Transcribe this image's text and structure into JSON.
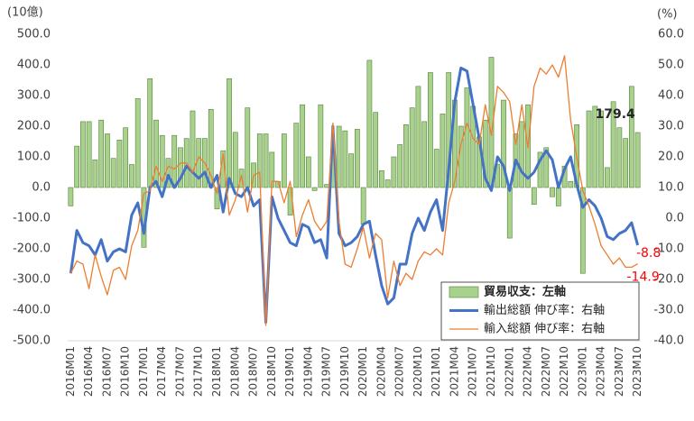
{
  "chart_data": {
    "type": "bar-line",
    "ylabel": "(10億)",
    "y2label": "(%)",
    "categories": [
      "2016M01",
      null,
      null,
      "2016M04",
      null,
      null,
      "2016M07",
      null,
      null,
      "2016M10",
      null,
      null,
      "2017M01",
      null,
      null,
      "2017M04",
      null,
      null,
      "2017M07",
      null,
      null,
      "2017M10",
      null,
      null,
      "2018M01",
      null,
      null,
      "2018M04",
      null,
      null,
      "2018M07",
      null,
      null,
      "2018M10",
      null,
      null,
      "2019M01",
      null,
      null,
      "2019M04",
      null,
      null,
      "2019M07",
      null,
      null,
      "2019M10",
      null,
      null,
      "2020M01",
      null,
      null,
      "2020M04",
      null,
      null,
      "2020M07",
      null,
      null,
      "2020M10",
      null,
      null,
      "2021M01",
      null,
      null,
      "2021M04",
      null,
      null,
      "2021M07",
      null,
      null,
      "2021M10",
      null,
      null,
      "2022M01",
      null,
      null,
      "2022M04",
      null,
      null,
      "2022M07",
      null,
      null,
      "2022M10",
      null,
      null,
      "2023M01",
      null,
      null,
      "2023M04",
      null,
      null,
      "2023M07",
      null,
      null,
      "2023M10"
    ],
    "series": [
      {
        "name": "貿易収支：左軸",
        "kind": "bar",
        "axis": "y",
        "color": "#a9d18e",
        "edge": "#548235",
        "values": [
          -60,
          135,
          215,
          215,
          90,
          220,
          175,
          95,
          155,
          195,
          75,
          290,
          -195,
          355,
          220,
          170,
          95,
          170,
          130,
          160,
          250,
          160,
          160,
          255,
          -70,
          120,
          355,
          180,
          60,
          260,
          80,
          175,
          175,
          115,
          20,
          175,
          -90,
          210,
          270,
          100,
          -10,
          270,
          10,
          120,
          200,
          185,
          110,
          190,
          -120,
          415,
          245,
          55,
          25,
          100,
          140,
          205,
          260,
          330,
          215,
          375,
          125,
          240,
          375,
          285,
          200,
          325,
          265,
          165,
          220,
          425,
          75,
          285,
          -165,
          175,
          215,
          270,
          -55,
          115,
          130,
          -30,
          -60,
          70,
          20,
          205,
          -280,
          250,
          265,
          250,
          65,
          280,
          195,
          160,
          330,
          179.4
        ],
        "value_labels": [
          null,
          null,
          null,
          null,
          null,
          null,
          null,
          null,
          null,
          null,
          null,
          null,
          null,
          null,
          null,
          null,
          null,
          null,
          null,
          null,
          null,
          null,
          null,
          null,
          null,
          null,
          null,
          null,
          null,
          null,
          null,
          null,
          null,
          null,
          null,
          null,
          null,
          null,
          null,
          null,
          null,
          null,
          null,
          null,
          null,
          null,
          null,
          null,
          null,
          null,
          null,
          null,
          null,
          null,
          null,
          null,
          null,
          null,
          null,
          null,
          null,
          null,
          null,
          null,
          null,
          null,
          null,
          null,
          null,
          null,
          null,
          null,
          null,
          null,
          null,
          null,
          null,
          null,
          null,
          null,
          null,
          null,
          null,
          null,
          null,
          null,
          null,
          null,
          null,
          null,
          null,
          null,
          null,
          "179.4"
        ],
        "label_color": "#262626"
      },
      {
        "name": "輸出総額 伸び率：右軸",
        "kind": "line",
        "axis": "y2",
        "color": "#4472c4",
        "width": 3,
        "values": [
          -18,
          -4,
          -8,
          -9,
          -12,
          -7,
          -14,
          -11,
          -10,
          -11,
          1,
          5,
          -5,
          10,
          12,
          7,
          14,
          10,
          13,
          17,
          15,
          13,
          15,
          10,
          14,
          2,
          13,
          8,
          7,
          10,
          4,
          6,
          -34,
          7,
          0,
          -4,
          -8,
          -9,
          -2,
          -3,
          -8,
          -7,
          -13,
          30,
          -5,
          -9,
          -8,
          -6,
          -2,
          -1,
          -12,
          -22,
          -28,
          -26,
          -15,
          -15,
          -5,
          0,
          -4,
          2,
          6,
          -4,
          16,
          38,
          49,
          48,
          37,
          26,
          13,
          9,
          20,
          17,
          9,
          19,
          15,
          13,
          15,
          19,
          22,
          19,
          10,
          16,
          20,
          11,
          3.5,
          6,
          4,
          0,
          -6,
          -7,
          -5,
          -4,
          -1.5,
          -8.8
        ],
        "value_labels": [
          null,
          null,
          null,
          null,
          null,
          null,
          null,
          null,
          null,
          null,
          null,
          null,
          null,
          null,
          null,
          null,
          null,
          null,
          null,
          null,
          null,
          null,
          null,
          null,
          null,
          null,
          null,
          null,
          null,
          null,
          null,
          null,
          null,
          null,
          null,
          null,
          null,
          null,
          null,
          null,
          null,
          null,
          null,
          null,
          null,
          null,
          null,
          null,
          null,
          null,
          null,
          null,
          null,
          null,
          null,
          null,
          null,
          null,
          null,
          null,
          null,
          null,
          null,
          null,
          null,
          null,
          null,
          null,
          null,
          null,
          null,
          null,
          null,
          null,
          null,
          null,
          null,
          null,
          null,
          null,
          null,
          null,
          null,
          null,
          null,
          null,
          null,
          null,
          null,
          null,
          null,
          null,
          null,
          "-8.8"
        ],
        "label_color": "#ff0000"
      },
      {
        "name": "輸入総額 伸び率：右軸",
        "kind": "line",
        "axis": "y2",
        "color": "#ed7d31",
        "width": 1.3,
        "values": [
          -18,
          -14,
          -15,
          -23,
          -12,
          -19,
          -25,
          -17,
          -16,
          -20,
          -9,
          -4,
          8,
          9,
          17,
          12,
          17,
          16,
          18,
          18,
          15,
          20,
          18,
          14,
          8,
          21,
          1,
          6,
          14,
          2,
          14,
          15,
          -35,
          12,
          12,
          5,
          12,
          -6,
          1,
          6,
          -1,
          -4,
          -1,
          31,
          -1,
          -15,
          -16,
          -10,
          -3,
          -13,
          -5,
          -7,
          -26,
          -14,
          -22,
          -18,
          -20,
          -14,
          -11,
          -12,
          -10,
          -12,
          5,
          12,
          24,
          31,
          26,
          24,
          37,
          27,
          43,
          41,
          38,
          24,
          37,
          23,
          43,
          49,
          47,
          50,
          46,
          53,
          32,
          20,
          9,
          4,
          -2,
          -9,
          -12,
          -15,
          -13,
          -16,
          -16,
          -14.9
        ],
        "value_labels": [
          null,
          null,
          null,
          null,
          null,
          null,
          null,
          null,
          null,
          null,
          null,
          null,
          null,
          null,
          null,
          null,
          null,
          null,
          null,
          null,
          null,
          null,
          null,
          null,
          null,
          null,
          null,
          null,
          null,
          null,
          null,
          null,
          null,
          null,
          null,
          null,
          null,
          null,
          null,
          null,
          null,
          null,
          null,
          null,
          null,
          null,
          null,
          null,
          null,
          null,
          null,
          null,
          null,
          null,
          null,
          null,
          null,
          null,
          null,
          null,
          null,
          null,
          null,
          null,
          null,
          null,
          null,
          null,
          null,
          null,
          null,
          null,
          null,
          null,
          null,
          null,
          null,
          null,
          null,
          null,
          null,
          null,
          null,
          null,
          null,
          null,
          null,
          null,
          null,
          null,
          null,
          null,
          null,
          "-14.9"
        ],
        "label_color": "#ff0000"
      }
    ],
    "ylim": [
      -500,
      500
    ],
    "yticks": [
      {
        "value": -500,
        "label": "-500.0"
      },
      {
        "value": -400,
        "label": "-400.0"
      },
      {
        "value": -300,
        "label": "-300.0"
      },
      {
        "value": -200,
        "label": "-200.0"
      },
      {
        "value": -100,
        "label": "-100.0"
      },
      {
        "value": 0,
        "label": "0.0"
      },
      {
        "value": 100,
        "label": "100.0"
      },
      {
        "value": 200,
        "label": "200.0"
      },
      {
        "value": 300,
        "label": "300.0"
      },
      {
        "value": 400,
        "label": "400.0"
      },
      {
        "value": 500,
        "label": "500.0"
      }
    ],
    "y2lim": [
      -40,
      60
    ],
    "y2ticks": [
      {
        "value": -40,
        "label": "-40.0"
      },
      {
        "value": -30,
        "label": "-30.0"
      },
      {
        "value": -20,
        "label": "-20.0"
      },
      {
        "value": -10,
        "label": "-10.0"
      },
      {
        "value": 0,
        "label": "0.0"
      },
      {
        "value": 10,
        "label": "10.0"
      },
      {
        "value": 20,
        "label": "20.0"
      },
      {
        "value": 30,
        "label": "30.0"
      },
      {
        "value": 40,
        "label": "40.0"
      },
      {
        "value": 50,
        "label": "50.0"
      },
      {
        "value": 60,
        "label": "60.0"
      }
    ],
    "legend": "bottom-right"
  }
}
